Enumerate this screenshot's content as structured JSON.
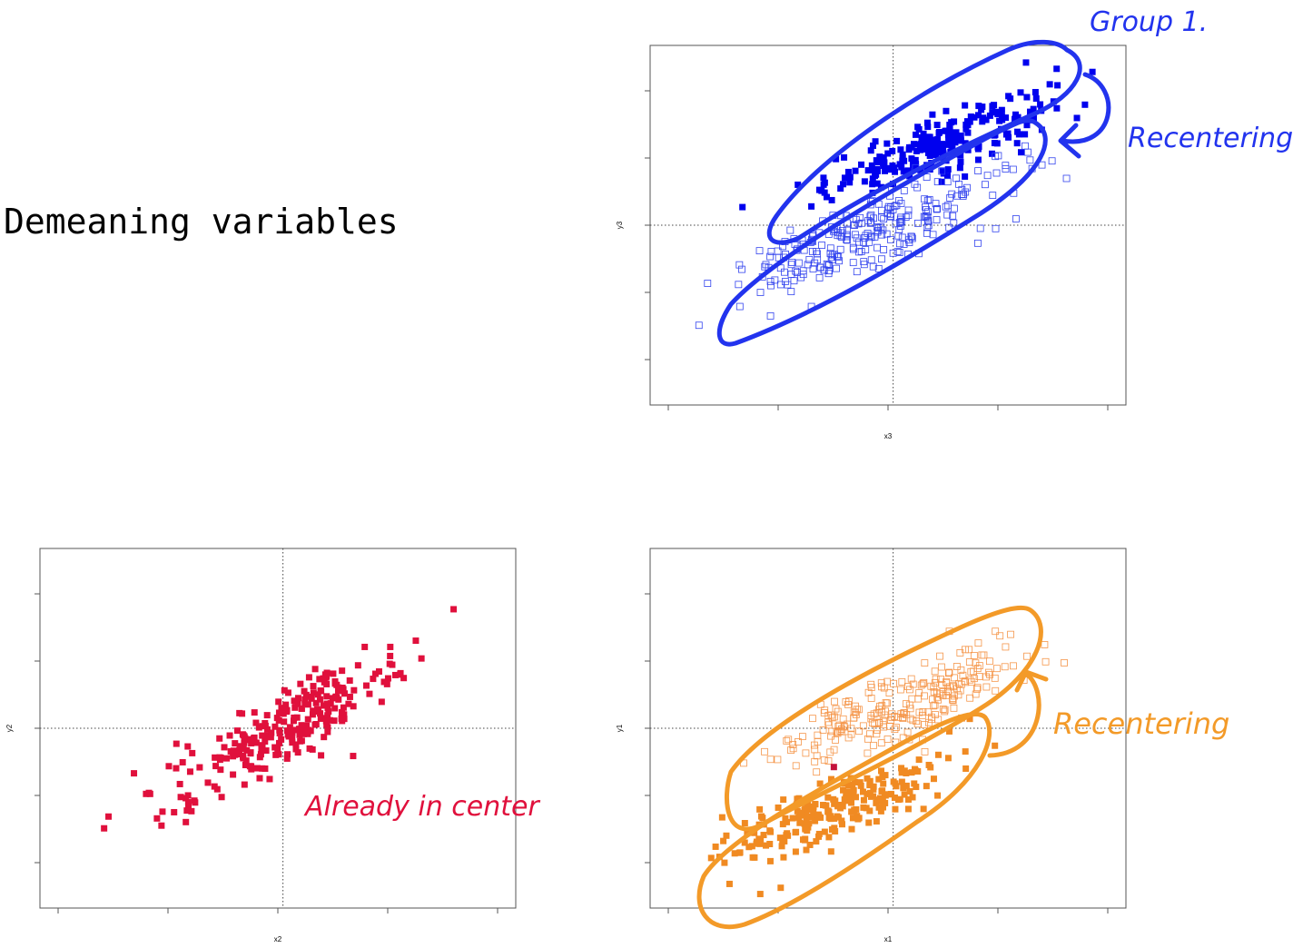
{
  "page": {
    "title": "Demeaning variables"
  },
  "annotations": {
    "group_label": "Group 1.",
    "recentering_top": "Recentering",
    "recentering_bottom": "Recentering",
    "already_center": "Already in center"
  },
  "colors": {
    "blue": "#0000ee",
    "blue_ink": "#2233ee",
    "red": "#e0103c",
    "orange": "#f08a22",
    "orange_ink": "#f39a28"
  },
  "chart_data": [
    {
      "id": "top-right",
      "type": "scatter",
      "xlabel": "x3",
      "ylabel": "y3",
      "xlim": [
        -2.2,
        2.1
      ],
      "ylim": [
        -2.7,
        2.7
      ],
      "grid": false,
      "reference_lines": {
        "x": 0,
        "y": 0
      },
      "series": [
        {
          "filled": true,
          "color": "#0000ee",
          "center": [
            0.45,
            1.3
          ],
          "spread": [
            0.55,
            0.38
          ],
          "rho": 0.82,
          "n": 230,
          "extra_points": [
            [
              -0.7,
              0.55
            ],
            [
              -0.65,
              0.45
            ],
            [
              -0.8,
              0.3
            ],
            [
              -0.6,
              0.4
            ],
            [
              1.3,
              2.6
            ],
            [
              1.6,
              2.5
            ],
            [
              1.95,
              2.45
            ]
          ]
        },
        {
          "filled": false,
          "color": "#3344ee",
          "center": [
            -0.2,
            -0.1
          ],
          "spread": [
            0.65,
            0.45
          ],
          "rho": 0.8,
          "n": 260,
          "extra_points": [
            [
              -1.2,
              -0.9
            ],
            [
              -1.1,
              -0.95
            ],
            [
              -1.2,
              -1.45
            ],
            [
              -1.5,
              -1.3
            ],
            [
              -1.9,
              -1.6
            ],
            [
              -0.8,
              -1.3
            ],
            [
              1.0,
              1.1
            ],
            [
              1.1,
              0.9
            ],
            [
              0.9,
              0.65
            ]
          ]
        }
      ]
    },
    {
      "id": "bottom-left",
      "type": "scatter",
      "xlabel": "x2",
      "ylabel": "y2",
      "xlim": [
        -2.2,
        2.1
      ],
      "ylim": [
        -2.7,
        2.7
      ],
      "grid": false,
      "reference_lines": {
        "x": 0,
        "y": 0
      },
      "series": [
        {
          "filled": true,
          "color": "#e0103c",
          "center": [
            0.0,
            0.0
          ],
          "spread": [
            0.55,
            0.55
          ],
          "rho": 0.85,
          "n": 260,
          "extra_points": [
            [
              -1.75,
              -1.6
            ],
            [
              -0.95,
              -1.5
            ],
            [
              -1.3,
              -1.05
            ],
            [
              -1.0,
              -1.1
            ],
            [
              1.3,
              1.4
            ],
            [
              1.05,
              1.3
            ],
            [
              1.1,
              0.85
            ],
            [
              0.8,
              1.3
            ],
            [
              1.15,
              0.88
            ],
            [
              -0.6,
              -1.1
            ]
          ]
        }
      ]
    },
    {
      "id": "bottom-right",
      "type": "scatter",
      "xlabel": "x1",
      "ylabel": "y1",
      "xlim": [
        -2.2,
        2.1
      ],
      "ylim": [
        -2.7,
        2.7
      ],
      "grid": false,
      "reference_lines": {
        "x": 0,
        "y": 0
      },
      "series": [
        {
          "filled": false,
          "color": "#f5964a",
          "center": [
            0.15,
            0.4
          ],
          "spread": [
            0.6,
            0.45
          ],
          "rho": 0.8,
          "n": 240,
          "extra_points": [
            [
              1.15,
              1.5
            ],
            [
              1.0,
              1.55
            ],
            [
              0.55,
              1.55
            ],
            [
              1.1,
              1.3
            ],
            [
              -1.0,
              -0.35
            ],
            [
              -0.95,
              -0.6
            ],
            [
              -0.75,
              -0.7
            ]
          ]
        },
        {
          "filled": true,
          "color": "#f08a22",
          "center": [
            -0.55,
            -1.3
          ],
          "spread": [
            0.55,
            0.38
          ],
          "rho": 0.82,
          "n": 230,
          "extra_points": [
            [
              -1.65,
              -2.15
            ],
            [
              -1.3,
              -2.65
            ],
            [
              -1.1,
              -2.55
            ],
            [
              -1.55,
              -2.0
            ],
            [
              0.75,
              0.15
            ],
            [
              0.55,
              -0.05
            ]
          ]
        },
        {
          "filled": true,
          "color": "#c4123a",
          "center": [
            -0.6,
            -0.6
          ],
          "spread": [
            0,
            0
          ],
          "rho": 0,
          "n": 0,
          "extra_points": [
            [
              -0.58,
              -0.62
            ]
          ]
        }
      ]
    }
  ]
}
